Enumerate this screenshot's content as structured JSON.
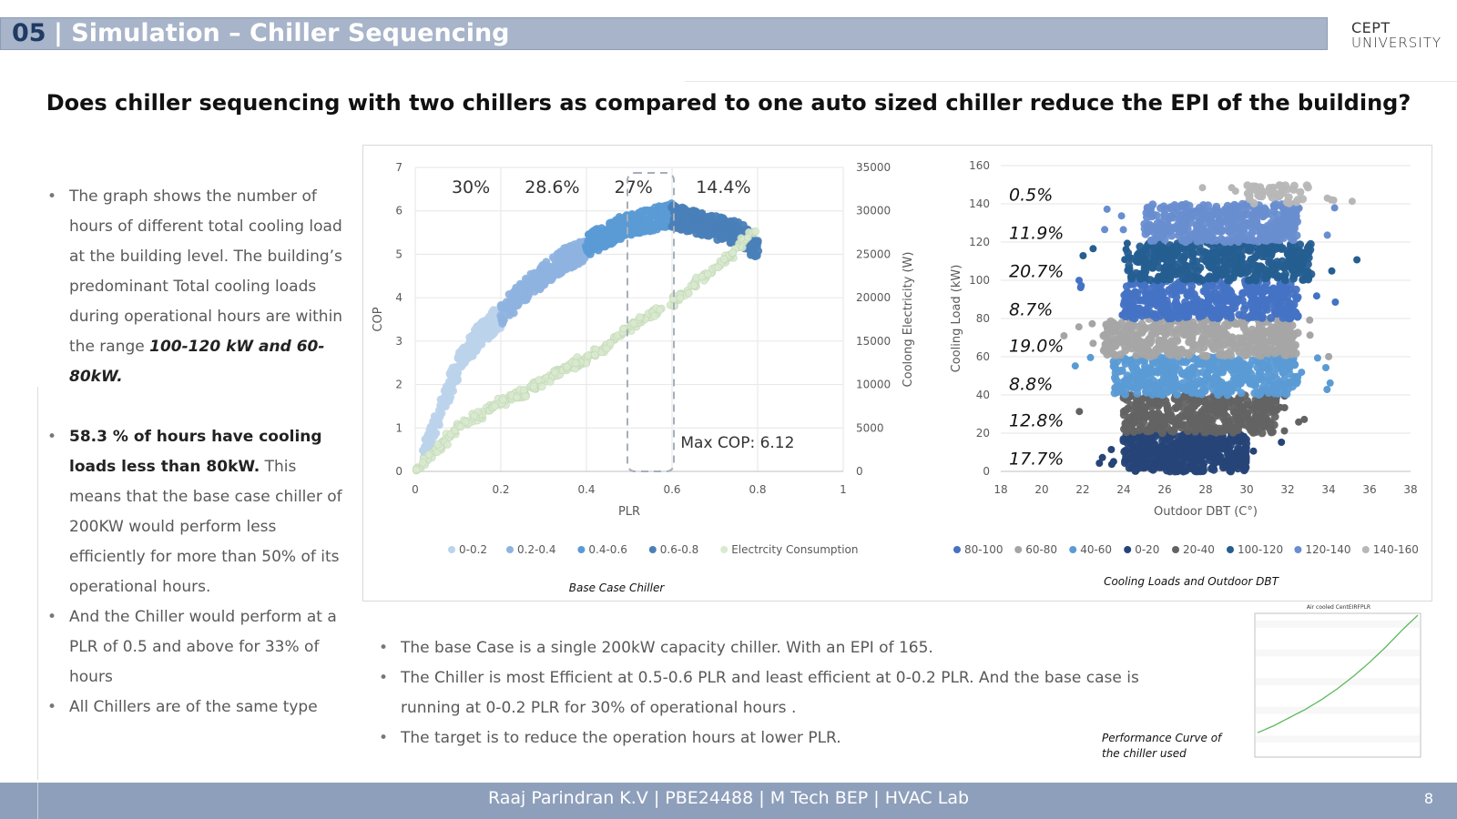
{
  "header": {
    "number": "05",
    "title": "| Simulation – Chiller Sequencing"
  },
  "logo": {
    "line1": "CEPT",
    "line2": "UNIVERSITY"
  },
  "question": "Does chiller sequencing with two chillers as compared to one auto sized chiller reduce the EPI of the building?",
  "left_bullets": {
    "b1_pre": "The graph shows the number of hours of different total cooling load at the building level. The building’s predominant Total cooling loads during operational hours are within the range ",
    "b1_bold": "100-120 kW and 60-80kW.",
    "b2_bold": "58.3 % of hours have cooling loads less than 80kW.",
    "b2_rest": " This means that the base case chiller of 200KW would perform less efficiently for more than 50%  of its operational hours.",
    "b3": "And the Chiller would perform at a PLR of 0.5 and above for 33% of hours",
    "b4": "All Chillers are of the same type"
  },
  "bottom_bullets": [
    "The base Case is a single 200kW capacity chiller. With an EPI of 165.",
    "The Chiller is most Efficient at 0.5-0.6 PLR and least efficient at 0-0.2 PLR. And the base case is running at 0-0.2 PLR for  30% of operational hours .",
    "The target is to reduce the operation hours at lower PLR."
  ],
  "chart_data": [
    {
      "type": "scatter",
      "caption": "Base Case Chiller",
      "xlabel": "PLR",
      "ylabel": "COP",
      "y2label": "Coolong Electricity (W)",
      "xlim": [
        0,
        1
      ],
      "ylim": [
        0,
        7
      ],
      "y2lim": [
        0,
        35000
      ],
      "xticks": [
        0,
        0.2,
        0.4,
        0.6,
        0.8,
        1
      ],
      "yticks": [
        0,
        1,
        2,
        3,
        4,
        5,
        6,
        7
      ],
      "y2ticks": [
        0,
        5000,
        10000,
        15000,
        20000,
        25000,
        30000,
        35000
      ],
      "band_labels": [
        {
          "x": 0.13,
          "text": "30%"
        },
        {
          "x": 0.32,
          "text": "28.6%"
        },
        {
          "x": 0.51,
          "text": "27%"
        },
        {
          "x": 0.72,
          "text": "14.4%"
        }
      ],
      "annotation": "Max COP: 6.12",
      "highlight_x": [
        0.5,
        0.6
      ],
      "series": [
        {
          "name": "0-0.2",
          "color": "#bcd3ec",
          "x": [
            0.02,
            0.04,
            0.06,
            0.08,
            0.1,
            0.12,
            0.14,
            0.16,
            0.18,
            0.2
          ],
          "y": [
            0.5,
            1.1,
            1.6,
            2.1,
            2.6,
            2.9,
            3.2,
            3.4,
            3.6,
            3.75
          ]
        },
        {
          "name": "0.2-0.4",
          "color": "#8fb3e0",
          "x": [
            0.2,
            0.22,
            0.24,
            0.26,
            0.28,
            0.3,
            0.32,
            0.34,
            0.36,
            0.38,
            0.4
          ],
          "y": [
            3.8,
            4.0,
            4.2,
            4.4,
            4.55,
            4.7,
            4.85,
            5.0,
            5.1,
            5.2,
            5.3
          ]
        },
        {
          "name": "0.4-0.6",
          "color": "#5b9bd5",
          "x": [
            0.4,
            0.42,
            0.44,
            0.46,
            0.48,
            0.5,
            0.52,
            0.54,
            0.56,
            0.58,
            0.6
          ],
          "y": [
            5.35,
            5.5,
            5.6,
            5.7,
            5.8,
            5.85,
            5.9,
            5.95,
            6.0,
            6.05,
            6.1
          ]
        },
        {
          "name": "0.6-0.8",
          "color": "#4a7fb8",
          "x": [
            0.6,
            0.62,
            0.64,
            0.66,
            0.68,
            0.7,
            0.72,
            0.74,
            0.76,
            0.78,
            0.8
          ],
          "y": [
            6.05,
            6.0,
            5.95,
            5.9,
            5.85,
            5.8,
            5.75,
            5.7,
            5.65,
            5.5,
            5.3
          ]
        },
        {
          "name": "Electrcity Consumption",
          "color": "#d9ead0",
          "axis": "y2",
          "x": [
            0.0,
            0.05,
            0.1,
            0.15,
            0.2,
            0.25,
            0.3,
            0.35,
            0.4,
            0.45,
            0.5,
            0.55,
            0.6,
            0.65,
            0.7,
            0.75,
            0.8
          ],
          "y": [
            0,
            2500,
            5000,
            6500,
            8000,
            9000,
            10500,
            11800,
            13000,
            14500,
            16500,
            18000,
            19500,
            21500,
            23500,
            25500,
            28000
          ]
        }
      ]
    },
    {
      "type": "scatter",
      "caption": "Cooling Loads and Outdoor DBT",
      "xlabel": "Outdoor DBT (C°)",
      "ylabel": "Cooling Load (kW)",
      "xlim": [
        18,
        38
      ],
      "ylim": [
        0,
        160
      ],
      "xticks": [
        18,
        20,
        22,
        24,
        26,
        28,
        30,
        32,
        34,
        36,
        38
      ],
      "yticks": [
        0,
        20,
        40,
        60,
        80,
        100,
        120,
        140,
        160
      ],
      "band_labels": [
        {
          "y": 145,
          "text": "0.5%"
        },
        {
          "y": 125,
          "text": "11.9%"
        },
        {
          "y": 105,
          "text": "20.7%"
        },
        {
          "y": 85,
          "text": "8.7%"
        },
        {
          "y": 66,
          "text": "19.0%"
        },
        {
          "y": 46,
          "text": "8.8%"
        },
        {
          "y": 27,
          "text": "12.8%"
        },
        {
          "y": 7,
          "text": "17.7%"
        }
      ],
      "series": [
        {
          "name": "80-100",
          "color": "#4472c4",
          "y_range": [
            80,
            100
          ],
          "x_range": [
            24,
            32.5
          ]
        },
        {
          "name": "60-80",
          "color": "#a5a5a5",
          "y_range": [
            60,
            80
          ],
          "x_range": [
            23,
            32.5
          ]
        },
        {
          "name": "40-60",
          "color": "#5b9bd5",
          "y_range": [
            40,
            60
          ],
          "x_range": [
            23.5,
            32.5
          ]
        },
        {
          "name": "0-20",
          "color": "#264478",
          "y_range": [
            0,
            20
          ],
          "x_range": [
            24,
            30
          ]
        },
        {
          "name": "20-40",
          "color": "#636363",
          "y_range": [
            20,
            40
          ],
          "x_range": [
            24,
            31.5
          ]
        },
        {
          "name": "100-120",
          "color": "#255e91",
          "y_range": [
            100,
            120
          ],
          "x_range": [
            24.2,
            33.2
          ]
        },
        {
          "name": "120-140",
          "color": "#698ed0",
          "y_range": [
            120,
            140
          ],
          "x_range": [
            25,
            32.5
          ]
        },
        {
          "name": "140-160",
          "color": "#b7b7b7",
          "y_range": [
            140,
            150
          ],
          "x_range": [
            30,
            33
          ]
        }
      ]
    }
  ],
  "perf_curve": {
    "title": "Air cooled CentEIRFPLR",
    "caption": "Performance Curve of the chiller used",
    "color": "#5cb85c",
    "x": [
      0,
      0.1,
      0.2,
      0.3,
      0.4,
      0.5,
      0.6,
      0.7,
      0.8,
      0.9,
      1.0
    ],
    "y": [
      0.15,
      0.2,
      0.26,
      0.32,
      0.39,
      0.47,
      0.56,
      0.66,
      0.77,
      0.89,
      1.0
    ]
  },
  "footer": {
    "text": "Raaj Parindran K.V | PBE24488 | M Tech BEP | HVAC Lab",
    "page": "8"
  }
}
